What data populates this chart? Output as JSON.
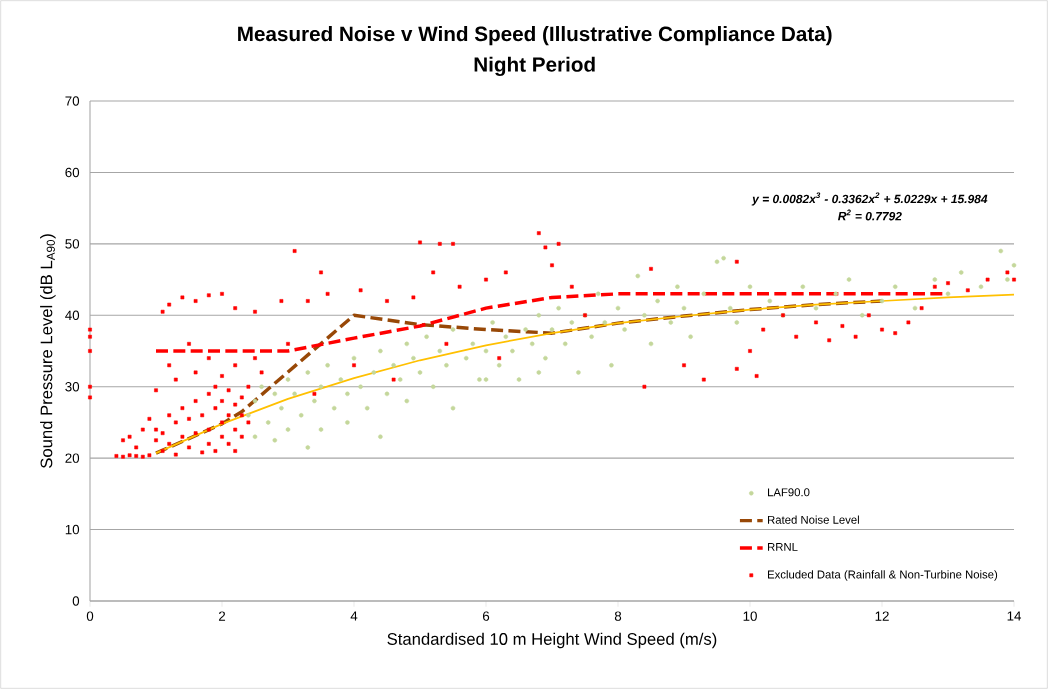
{
  "chart_data": {
    "type": "scatter",
    "title": "Measured Noise v Wind Speed (Illustrative Compliance Data)",
    "subtitle": "Night Period",
    "xlabel": "Standardised 10 m Height Wind Speed (m/s)",
    "ylabel": "Sound Pressure Level (dB L$_{A90}$)",
    "xlim": [
      0,
      14
    ],
    "ylim": [
      0,
      70
    ],
    "xticks": [
      0,
      2,
      4,
      6,
      8,
      10,
      12,
      14
    ],
    "yticks": [
      0,
      10,
      20,
      30,
      40,
      50,
      60,
      70
    ],
    "grid": "y",
    "legend": "bottom right",
    "annotations": [
      "y = 0.0082x$^{3}$ - 0.3362x$^{2}$ + 5.0229x + 15.984",
      "R$^{2}$ = 0.7792"
    ],
    "series": [
      {
        "name": "LAF90.0",
        "color": "#c4d79b",
        "marker": "circle",
        "x": [
          2.4,
          2.5,
          2.5,
          2.6,
          2.7,
          2.8,
          2.8,
          2.9,
          3.0,
          3.0,
          3.1,
          3.2,
          3.3,
          3.3,
          3.4,
          3.5,
          3.5,
          3.6,
          3.7,
          3.8,
          3.9,
          3.9,
          4.0,
          4.1,
          4.2,
          4.3,
          4.4,
          4.4,
          4.5,
          4.6,
          4.7,
          4.8,
          4.8,
          4.9,
          5.0,
          5.1,
          5.2,
          5.3,
          5.4,
          5.5,
          5.5,
          5.7,
          5.8,
          5.9,
          6.0,
          6.0,
          6.1,
          6.2,
          6.3,
          6.4,
          6.5,
          6.6,
          6.7,
          6.8,
          6.8,
          6.9,
          7.0,
          7.1,
          7.2,
          7.3,
          7.4,
          7.5,
          7.6,
          7.7,
          7.8,
          7.9,
          8.0,
          8.1,
          8.3,
          8.4,
          8.5,
          8.6,
          8.8,
          8.9,
          9.0,
          9.1,
          9.3,
          9.5,
          9.6,
          9.7,
          9.8,
          10.0,
          10.3,
          10.5,
          10.8,
          11.0,
          11.3,
          11.5,
          11.7,
          12.0,
          12.2,
          12.5,
          12.8,
          13.0,
          13.2,
          13.5,
          13.8,
          13.9,
          14.0
        ],
        "values": [
          26,
          28,
          23,
          30,
          25,
          29,
          22.5,
          27,
          31,
          24,
          29,
          26,
          32,
          21.5,
          28,
          30,
          24,
          33,
          27,
          31,
          25,
          29,
          34,
          30,
          27,
          32,
          23,
          35,
          29,
          33,
          31,
          36,
          28,
          34,
          32,
          37,
          30,
          35,
          33,
          38,
          27,
          34,
          36,
          31,
          35,
          31,
          39,
          33,
          37,
          35,
          31,
          38,
          36,
          40,
          32,
          34,
          38,
          41,
          36,
          39,
          32,
          40,
          37,
          43,
          39,
          33,
          41,
          38,
          45.5,
          40,
          36,
          42,
          39,
          44,
          41,
          37,
          43,
          47.5,
          48,
          41,
          39,
          44,
          42,
          40,
          44,
          41,
          43,
          45,
          40,
          42,
          44,
          41,
          45,
          43,
          46,
          44,
          49,
          45,
          47
        ]
      },
      {
        "name": "Rated Noise Level",
        "type": "line",
        "color": "#984807",
        "marker": "none",
        "line_style": "dashed",
        "x": [
          1,
          2,
          2.3,
          4,
          5,
          6,
          7,
          8,
          9,
          10,
          11,
          12
        ],
        "values": [
          20.7,
          24.8,
          26.5,
          40,
          38.7,
          38,
          37.5,
          38.9,
          39.9,
          40.8,
          41.5,
          42
        ]
      },
      {
        "name": "RRNL",
        "type": "line",
        "color": "#ff0000",
        "marker": "none",
        "line_style": "dashed",
        "x": [
          1,
          2,
          3,
          4,
          5,
          6,
          7,
          8,
          9,
          10,
          11,
          12,
          13
        ],
        "values": [
          35,
          35,
          35,
          36.8,
          38.5,
          41,
          42.5,
          43,
          43,
          43,
          43,
          43,
          43
        ]
      },
      {
        "name": "Excluded Data (Rainfall & Non-Turbine Noise)",
        "color": "#ff0000",
        "marker": "square",
        "x": [
          0,
          0,
          0,
          0,
          0,
          0.4,
          0.5,
          0.6,
          0.7,
          0.8,
          0.9,
          0.5,
          0.6,
          0.7,
          0.8,
          0.9,
          1.0,
          1.0,
          1.1,
          1.1,
          1.2,
          1.2,
          1.3,
          1.3,
          1.4,
          1.4,
          1.5,
          1.5,
          1.6,
          1.6,
          1.7,
          1.7,
          1.8,
          1.8,
          1.8,
          1.9,
          1.9,
          1.9,
          2.0,
          2.0,
          2.0,
          2.1,
          2.1,
          2.1,
          2.2,
          2.2,
          2.2,
          2.3,
          2.3,
          2.3,
          2.4,
          1.0,
          1.2,
          1.3,
          1.5,
          1.6,
          1.8,
          2.0,
          2.2,
          2.4,
          2.5,
          2.6,
          1.1,
          1.2,
          1.4,
          1.6,
          1.8,
          2.0,
          2.2,
          2.5,
          2.9,
          3.1,
          3.3,
          3.5,
          3.6,
          4.1,
          4.5,
          4.9,
          5.0,
          5.3,
          5.5,
          5.2,
          5.6,
          6.0,
          6.3,
          6.8,
          6.9,
          7.1,
          7.0,
          7.3,
          8.5,
          9.8,
          3.0,
          3.4,
          4.0,
          4.6,
          5.4,
          6.2,
          7.5,
          8.4,
          9.0,
          9.3,
          9.8,
          10.1,
          10.0,
          10.2,
          10.5,
          10.7,
          11.0,
          11.2,
          11.4,
          11.6,
          11.8,
          12.0,
          12.2,
          12.4,
          12.6,
          12.8,
          13.0,
          13.3,
          13.6,
          13.9,
          14.0
        ],
        "values": [
          38,
          37,
          35,
          30,
          28.5,
          20.3,
          20.2,
          20.4,
          20.3,
          20.2,
          20.4,
          22.5,
          23,
          21.5,
          24,
          25.5,
          22.5,
          24,
          21,
          23.5,
          26,
          22,
          25,
          20.5,
          27,
          23,
          21.5,
          25.5,
          28,
          23.5,
          20.8,
          26,
          24,
          29,
          22,
          27,
          21,
          30,
          25,
          23,
          28,
          26,
          22,
          29.5,
          24,
          27.5,
          21,
          26,
          23,
          28.5,
          25,
          29.5,
          33,
          31,
          36,
          32,
          34,
          31.5,
          33,
          30,
          34,
          32,
          40.5,
          41.5,
          42.5,
          42,
          42.8,
          43,
          41,
          40.5,
          42,
          49,
          42,
          46,
          43,
          43.5,
          42,
          42.5,
          50.2,
          50,
          50,
          46,
          44,
          45,
          46,
          51.5,
          49.5,
          50,
          47,
          44,
          46.5,
          47.5,
          36,
          29,
          33,
          31,
          36,
          34,
          40,
          30,
          33,
          31,
          32.5,
          31.5,
          35,
          38,
          40,
          37,
          39,
          36.5,
          38.5,
          37,
          40,
          38,
          37.5,
          39,
          41,
          44,
          44.5,
          43.5,
          45,
          46,
          45
        ]
      },
      {
        "type": "line",
        "color": "#ffc000",
        "marker": "none",
        "line_style": "solid",
        "x": [
          1,
          2,
          3,
          4,
          5,
          6,
          7,
          8,
          9,
          10,
          11,
          12,
          13,
          14
        ],
        "values": [
          20.7,
          24.8,
          28.3,
          31.2,
          33.7,
          35.8,
          37.5,
          38.9,
          39.9,
          40.8,
          41.5,
          42.0,
          42.5,
          42.9
        ]
      }
    ]
  }
}
